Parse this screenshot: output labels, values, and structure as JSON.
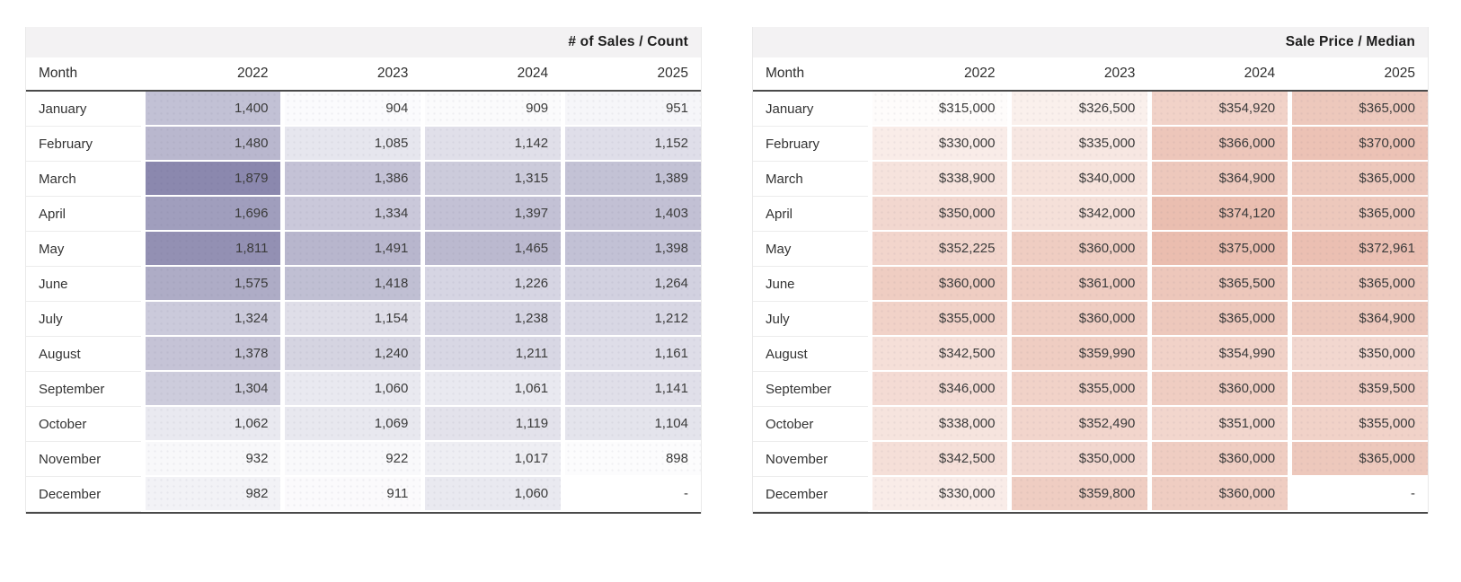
{
  "chart_data": [
    {
      "type": "table",
      "name": "sales-count",
      "title": "# of Sales / Count",
      "columns": [
        "Month",
        "2022",
        "2023",
        "2024",
        "2025"
      ],
      "months": [
        "January",
        "February",
        "March",
        "April",
        "May",
        "June",
        "July",
        "August",
        "September",
        "October",
        "November",
        "December"
      ],
      "series": [
        {
          "name": "2022",
          "values": [
            1400,
            1480,
            1879,
            1696,
            1811,
            1575,
            1324,
            1378,
            1304,
            1062,
            932,
            982
          ]
        },
        {
          "name": "2023",
          "values": [
            904,
            1085,
            1386,
            1334,
            1491,
            1418,
            1154,
            1240,
            1060,
            1069,
            922,
            911
          ]
        },
        {
          "name": "2024",
          "values": [
            909,
            1142,
            1315,
            1397,
            1465,
            1226,
            1238,
            1211,
            1061,
            1119,
            1017,
            1060
          ]
        },
        {
          "name": "2025",
          "values": [
            951,
            1152,
            1389,
            1403,
            1398,
            1264,
            1212,
            1161,
            1141,
            1104,
            898,
            null
          ]
        }
      ],
      "value_format": "number",
      "null_display": "-",
      "heatmap": {
        "min_color": "#fcfcfd",
        "max_color": "#8b88ae"
      },
      "title_bg": "#f3f2f3"
    },
    {
      "type": "table",
      "name": "sale-price-median",
      "title": "Sale Price / Median",
      "columns": [
        "Month",
        "2022",
        "2023",
        "2024",
        "2025"
      ],
      "months": [
        "January",
        "February",
        "March",
        "April",
        "May",
        "June",
        "July",
        "August",
        "September",
        "October",
        "November",
        "December"
      ],
      "series": [
        {
          "name": "2022",
          "values": [
            315000,
            330000,
            338900,
            350000,
            352225,
            360000,
            355000,
            342500,
            346000,
            338000,
            342500,
            330000
          ]
        },
        {
          "name": "2023",
          "values": [
            326500,
            335000,
            340000,
            342000,
            360000,
            361000,
            360000,
            359990,
            355000,
            352490,
            350000,
            359800
          ]
        },
        {
          "name": "2024",
          "values": [
            354920,
            366000,
            364900,
            374120,
            375000,
            365500,
            365000,
            354990,
            360000,
            351000,
            360000,
            360000
          ]
        },
        {
          "name": "2025",
          "values": [
            365000,
            370000,
            365000,
            365000,
            372961,
            365000,
            364900,
            350000,
            359500,
            355000,
            365000,
            null
          ]
        }
      ],
      "value_format": "currency",
      "null_display": "-",
      "heatmap": {
        "min_color": "#fefcfb",
        "max_color": "#eabdaf"
      },
      "title_bg": "#f3f2f3"
    }
  ],
  "colors": {
    "page_bg": "#ffffff",
    "title_row_bg": "#f3f2f3",
    "header_rule": "#4a4a4a",
    "month_row_border": "#ececec",
    "card_edge": "#e9e9e9",
    "title_text": "#1c1c1c",
    "header_text": "#2e2e2e",
    "cell_text": "#3b3b3b",
    "count_accent": "#8b88ae",
    "price_accent": "#eabdaf"
  }
}
